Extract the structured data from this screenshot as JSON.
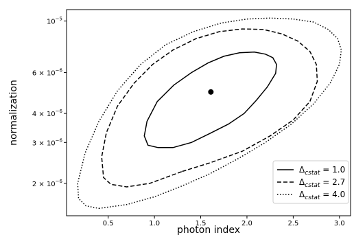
{
  "chart_data": {
    "type": "line",
    "title": "",
    "xlabel": "photon index",
    "ylabel": "normalization",
    "xlim": [
      0.05,
      3.12
    ],
    "ylim": [
      1.45e-06,
      1.12e-05
    ],
    "y_scale": "log",
    "grid": false,
    "x_ticks": [
      {
        "value": 0.5,
        "label": "0.5"
      },
      {
        "value": 1.0,
        "label": "1.0"
      },
      {
        "value": 1.5,
        "label": "1.5"
      },
      {
        "value": 2.0,
        "label": "2.0"
      },
      {
        "value": 2.5,
        "label": "2.5"
      },
      {
        "value": 3.0,
        "label": "3.0"
      }
    ],
    "y_ticks": [
      {
        "value": 2e-06,
        "base": "2 × 10",
        "exp": "−6"
      },
      {
        "value": 3e-06,
        "base": "3 × 10",
        "exp": "−6"
      },
      {
        "value": 4e-06,
        "base": "4 × 10",
        "exp": "−6"
      },
      {
        "value": 6e-06,
        "base": "6 × 10",
        "exp": "−6"
      },
      {
        "value": 1e-05,
        "base": "10",
        "exp": "−5"
      }
    ],
    "best_fit": {
      "x": 1.61,
      "y": 4.95e-06
    },
    "legend_position": "lower-right",
    "series": [
      {
        "label_main": "Δ",
        "label_sub": "cstat",
        "label_value": " = 1.0",
        "style": "solid",
        "x": [
          1.6,
          1.8,
          1.97,
          2.1,
          2.22,
          2.31,
          2.32,
          2.28,
          2.2,
          2.08,
          1.92,
          1.75,
          1.58,
          1.4,
          1.21,
          1.03,
          0.92,
          0.89,
          0.93,
          1.04,
          1.2,
          1.4,
          1.6
        ],
        "y": [
          3.28e-06,
          3.6e-06,
          4e-06,
          4.55e-06,
          5.2e-06,
          5.95e-06,
          6.5e-06,
          6.95e-06,
          7.2e-06,
          7.35e-06,
          7.3e-06,
          7.05e-06,
          6.6e-06,
          6e-06,
          5.3e-06,
          4.5e-06,
          3.7e-06,
          3.2e-06,
          2.92e-06,
          2.85e-06,
          2.85e-06,
          3e-06,
          3.28e-06
        ]
      },
      {
        "label_main": "Δ",
        "label_sub": "cstat",
        "label_value": " = 2.7",
        "style": "dashed",
        "x": [
          1.3,
          1.6,
          1.95,
          2.25,
          2.5,
          2.68,
          2.76,
          2.75,
          2.68,
          2.55,
          2.38,
          2.18,
          1.95,
          1.7,
          1.45,
          1.2,
          0.98,
          0.78,
          0.6,
          0.48,
          0.43,
          0.45,
          0.53,
          0.7,
          0.95,
          1.3
        ],
        "y": [
          2.25e-06,
          2.45e-06,
          2.75e-06,
          3.2e-06,
          3.75e-06,
          4.5e-06,
          5.5e-06,
          6.5e-06,
          7.4e-06,
          8.2e-06,
          8.8e-06,
          9.2e-06,
          9.25e-06,
          9e-06,
          8.4e-06,
          7.5e-06,
          6.5e-06,
          5.4e-06,
          4.3e-06,
          3.3e-06,
          2.6e-06,
          2.12e-06,
          1.98e-06,
          1.93e-06,
          2e-06,
          2.25e-06
        ]
      },
      {
        "label_main": "Δ",
        "label_sub": "cstat",
        "label_value": " = 4.0",
        "style": "dotted",
        "x": [
          0.4,
          0.7,
          1.0,
          1.3,
          1.6,
          1.9,
          2.2,
          2.48,
          2.72,
          2.9,
          3.0,
          3.02,
          2.98,
          2.88,
          2.72,
          2.5,
          2.25,
          2.0,
          1.72,
          1.42,
          1.12,
          0.85,
          0.6,
          0.4,
          0.25,
          0.17,
          0.18,
          0.26,
          0.4
        ],
        "y": [
          1.56e-06,
          1.62e-06,
          1.75e-06,
          1.95e-06,
          2.2e-06,
          2.55e-06,
          3e-06,
          3.6e-06,
          4.4e-06,
          5.4e-06,
          6.5e-06,
          7.5e-06,
          8.4e-06,
          9.2e-06,
          9.9e-06,
          1.02e-05,
          1.03e-05,
          1.02e-05,
          9.8e-06,
          9e-06,
          7.9e-06,
          6.5e-06,
          5e-06,
          3.7e-06,
          2.7e-06,
          2e-06,
          1.72e-06,
          1.6e-06,
          1.56e-06
        ]
      }
    ]
  }
}
